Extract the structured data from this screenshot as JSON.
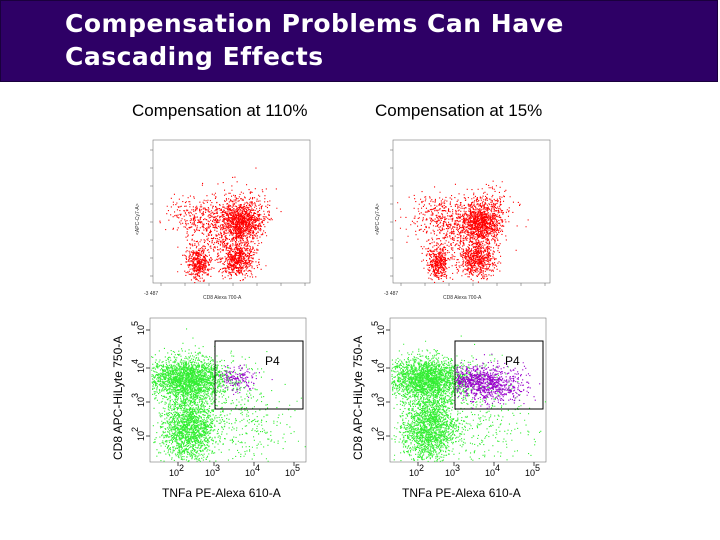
{
  "slide": {
    "title_line_1": "Compensation Problems Can Have",
    "title_line_2": "Cascading Effects",
    "colors": {
      "title_bg": "#2e0066",
      "title_text": "#ffffff",
      "top_dots": "#ff0000",
      "bottom_dots": "#33ee33",
      "gated_dots": "#9900cc"
    }
  },
  "columns": [
    {
      "label": "Compensation at 110%"
    },
    {
      "label": "Compensation at 15%"
    }
  ],
  "top_plots": {
    "xlabel": "CD8 Alexa 700-A",
    "ylabel": "<APC-Cy7-A>",
    "origin_label": "-3 487"
  },
  "bottom_plots": {
    "xlabel": "TNFa PE-Alexa 610-A",
    "ylabel": "CD8 APC-HiLyte 750-A",
    "gate_label": "P4",
    "x_ticks": [
      "10",
      "10",
      "10",
      "10"
    ],
    "x_exponents": [
      "2",
      "3",
      "4",
      "5"
    ],
    "y_ticks": [
      "10",
      "10",
      "10",
      "10"
    ],
    "y_exponents": [
      "2",
      "3",
      "4",
      "5"
    ]
  }
}
